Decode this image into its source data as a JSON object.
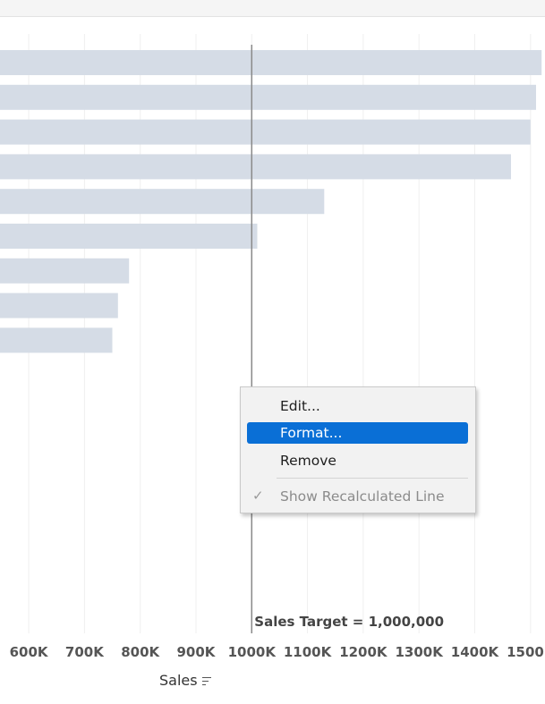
{
  "chart_data": {
    "type": "bar",
    "orientation": "horizontal",
    "values": [
      1520000,
      1510000,
      1500000,
      1465000,
      1130000,
      1010000,
      780000,
      760000,
      750000
    ],
    "x_ticks": [
      "600K",
      "700K",
      "800K",
      "900K",
      "1000K",
      "1100K",
      "1200K",
      "1300K",
      "1400K",
      "1500K"
    ],
    "x_tick_values": [
      600000,
      700000,
      800000,
      900000,
      1000000,
      1100000,
      1200000,
      1300000,
      1400000,
      1500000
    ],
    "xlim": [
      575000,
      1550000
    ],
    "xlabel": "Sales",
    "grid": true,
    "bar_color": "#d5dce6",
    "reference_line": {
      "value": 1000000,
      "label": "Sales Target = 1,000,000",
      "color": "#8a8a8a"
    }
  },
  "context_menu": {
    "items": [
      {
        "label": "Edit...",
        "highlighted": false,
        "disabled": false
      },
      {
        "label": "Format...",
        "highlighted": true,
        "disabled": false
      },
      {
        "label": "Remove",
        "highlighted": false,
        "disabled": false
      },
      {
        "label": "Show Recalculated Line",
        "highlighted": false,
        "disabled": true,
        "checked": true
      }
    ],
    "check_glyph": "✓",
    "highlight_color": "#0a6fd6"
  },
  "axis_title": {
    "label": "Sales",
    "sort_icon": "sort-descending-icon"
  }
}
